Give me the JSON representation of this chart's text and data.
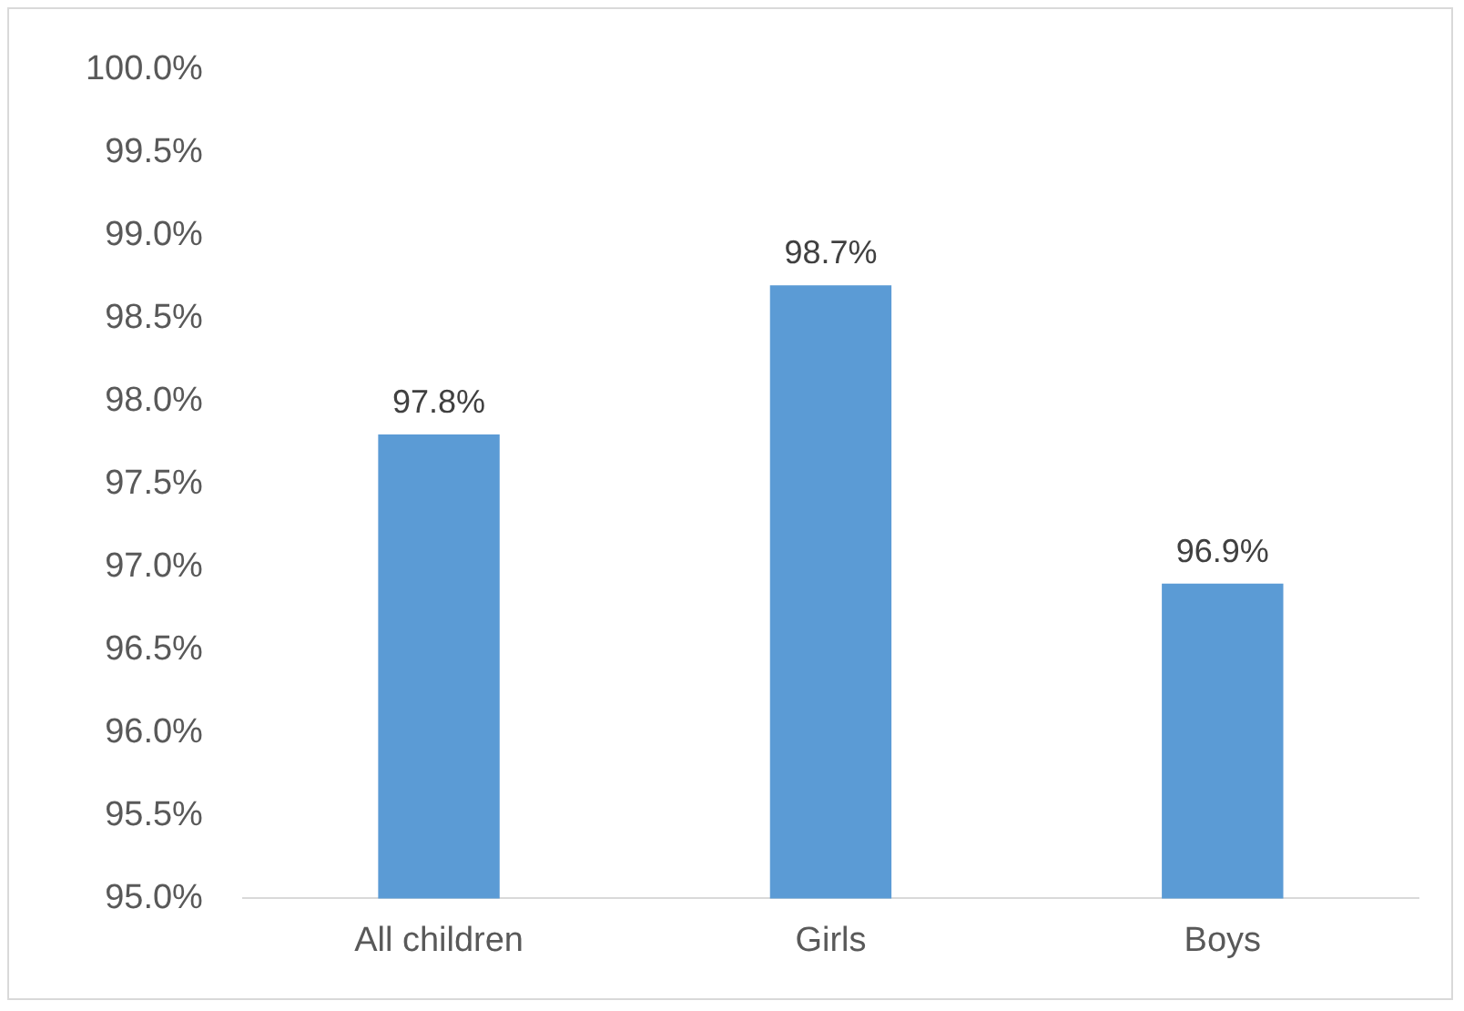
{
  "chart_data": {
    "type": "bar",
    "categories": [
      "All children",
      "Girls",
      "Boys"
    ],
    "values": [
      97.8,
      98.7,
      96.9
    ],
    "color": "#5b9bd5",
    "value_labels": [
      "97.8%",
      "98.7%",
      "96.9%"
    ],
    "ylim": [
      95,
      100
    ],
    "yticks": [
      {
        "value": 95,
        "label": "95.0%"
      },
      {
        "value": 95.5,
        "label": "95.5%"
      },
      {
        "value": 96,
        "label": "96.0%"
      },
      {
        "value": 96.5,
        "label": "96.5%"
      },
      {
        "value": 97,
        "label": "97.0%"
      },
      {
        "value": 97.5,
        "label": "97.5%"
      },
      {
        "value": 98,
        "label": "98.0%"
      },
      {
        "value": 98.5,
        "label": "98.5%"
      },
      {
        "value": 99,
        "label": "99.0%"
      },
      {
        "value": 99.5,
        "label": "99.5%"
      },
      {
        "value": 100,
        "label": "100.0%"
      }
    ],
    "grid": false,
    "legend": false
  }
}
